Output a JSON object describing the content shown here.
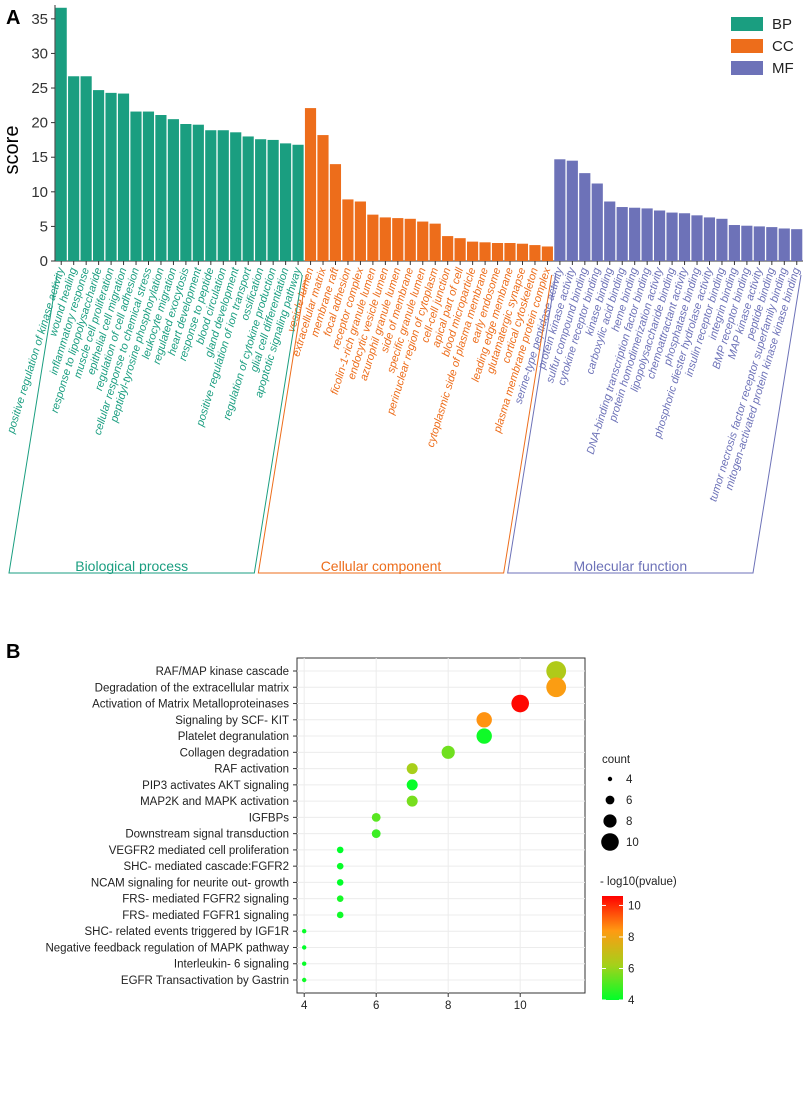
{
  "chart_data": [
    {
      "panel_label": "A",
      "type": "bar",
      "ylabel": "score",
      "ylim": [
        0,
        37
      ],
      "yticks": [
        0,
        5,
        10,
        15,
        20,
        25,
        30,
        35
      ],
      "legend": [
        "BP",
        "CC",
        "MF"
      ],
      "colors": {
        "BP": "#1a9e80",
        "CC": "#ed6d1b",
        "MF": "#6d72b8"
      },
      "groups": [
        {
          "key": "BP",
          "name": "Biological process",
          "categories": [
            "positive regulation of kinase activity",
            "wound healing",
            "inflammatory response",
            "response to lipopolysaccharide",
            "muscle cell proliferation",
            "epithelial cell migration",
            "regulation of cell adhesion",
            "cellular response to chemical stress",
            "peptidyl-tyrosine phosphorylation",
            "leukocyte migration",
            "regulated exocytosis",
            "heart development",
            "response to peptide",
            "blood circulation",
            "gland development",
            "positive regulation of ion transport",
            "ossification",
            "regulation of cytokine production",
            "glial cell differentiation",
            "apoptotic signaling pathway"
          ],
          "values": [
            36.6,
            26.7,
            26.7,
            24.7,
            24.3,
            24.2,
            21.6,
            21.6,
            21.1,
            20.5,
            19.8,
            19.7,
            18.9,
            18.9,
            18.6,
            18.0,
            17.6,
            17.5,
            17.0,
            16.8
          ]
        },
        {
          "key": "CC",
          "name": "Cellular component",
          "categories": [
            "vesicle lumen",
            "extracellular matrix",
            "membrane raft",
            "focal adhesion",
            "receptor complex",
            "ficolin-1-rich granule lumen",
            "endocytic vesicle lumen",
            "azurophil granule lumen",
            "side of membrane",
            "specific granule lumen",
            "perinuclear region of cytoplasm",
            "cell-cell junction",
            "apical part of cell",
            "blood microparticle",
            "cytoplasmic side of plasma membrane",
            "early endosome",
            "leading edge membrane",
            "glutamatergic synapse",
            "cortical cytoskeleton",
            "plasma membrane protein complex"
          ],
          "values": [
            22.1,
            18.2,
            14.0,
            8.9,
            8.6,
            6.7,
            6.3,
            6.2,
            6.1,
            5.7,
            5.4,
            3.6,
            3.3,
            2.8,
            2.7,
            2.6,
            2.6,
            2.5,
            2.3,
            2.1
          ]
        },
        {
          "key": "MF",
          "name": "Molecular function",
          "categories": [
            "serine-type peptidase activity",
            "protein kinase activity",
            "sulfur compound binding",
            "cytokine receptor binding",
            "kinase binding",
            "carboxylic acid binding",
            "heme binding",
            "DNA-binding transcription factor binding",
            "protein homodimerization activity",
            "lipopolysaccharide binding",
            "chemoattractant activity",
            "phosphatase binding",
            "phosphoric diester hydrolase activity",
            "insulin receptor binding",
            "integrin binding",
            "BMP receptor binding",
            "MAP kinase activity",
            "peptide binding",
            "tumor necrosis factor receptor superfamily binding",
            "mitogen-activated protein kinase kinase binding"
          ],
          "values": [
            14.7,
            14.5,
            12.7,
            11.2,
            8.6,
            7.8,
            7.7,
            7.6,
            7.3,
            7.0,
            6.9,
            6.6,
            6.3,
            6.1,
            5.2,
            5.1,
            5.0,
            4.9,
            4.7,
            4.6
          ]
        }
      ]
    },
    {
      "panel_label": "B",
      "type": "scatter",
      "title": "",
      "xlabel": "",
      "ylabel": "",
      "xlim": [
        3.8,
        11.8
      ],
      "xticks": [
        4,
        6,
        8,
        10
      ],
      "pathways": [
        "RAF/MAP kinase cascade",
        "Degradation of the extracellular matrix",
        "Activation of Matrix Metalloproteinases",
        "Signaling by SCF- KIT",
        "Platelet degranulation",
        "Collagen degradation",
        "RAF activation",
        "PIP3 activates AKT signaling",
        "MAP2K and MAPK activation",
        "IGFBPs",
        "Downstream signal transduction",
        "VEGFR2 mediated cell proliferation",
        "SHC- mediated cascade:FGFR2",
        "NCAM signaling for neurite out- growth",
        "FRS- mediated FGFR2 signaling",
        "FRS- mediated FGFR1 signaling",
        "SHC- related events triggered by IGF1R",
        "Negative feedback regulation of MAPK pathway",
        "Interleukin- 6 signaling",
        "EGFR Transactivation by Gastrin"
      ],
      "x": [
        11,
        11,
        10,
        9,
        9,
        8,
        7,
        7,
        7,
        6,
        6,
        5,
        5,
        5,
        5,
        5,
        4,
        4,
        4,
        4
      ],
      "pvalue_log": [
        6.5,
        8.3,
        10.5,
        8.5,
        4.2,
        5.5,
        6.3,
        4.1,
        5.6,
        5.2,
        4.8,
        4.0,
        4.1,
        4.0,
        4.3,
        4.2,
        4.1,
        4.0,
        4.1,
        4.2
      ],
      "size_legend": {
        "title": "count",
        "values": [
          4,
          6,
          8,
          10
        ]
      },
      "color_legend": {
        "title": "- log10(pvalue)",
        "ticks": [
          4,
          6,
          8,
          10
        ],
        "range": [
          4,
          10.6
        ],
        "colors": [
          "#00ff29",
          "#a4d11a",
          "#ff9a12",
          "#ff0000"
        ]
      }
    }
  ]
}
